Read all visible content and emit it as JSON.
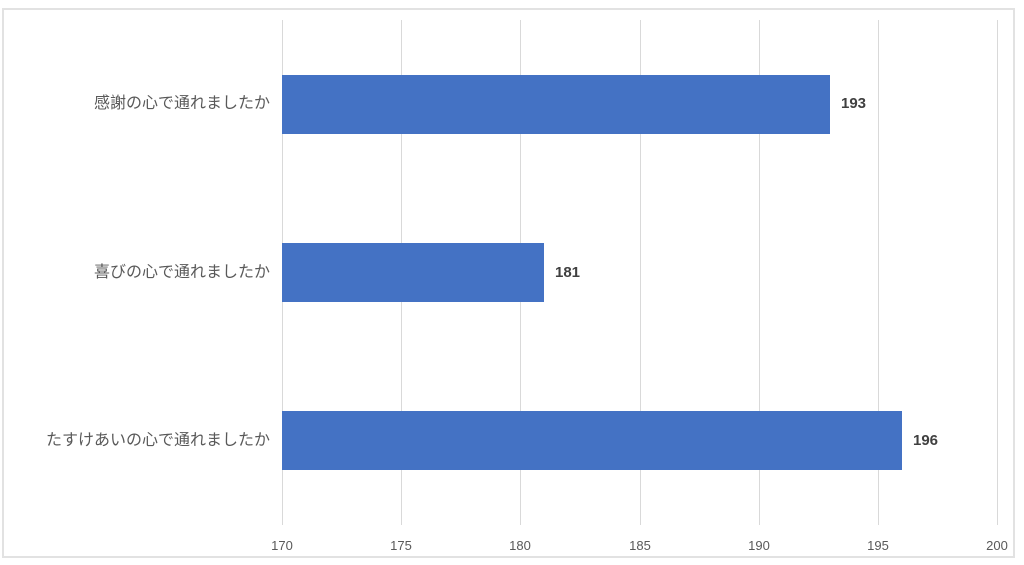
{
  "chart_data": {
    "type": "bar",
    "orientation": "horizontal",
    "title": "",
    "xlabel": "",
    "ylabel": "",
    "categories": [
      "感謝の心で通れましたか",
      "喜びの心で通れましたか",
      "たすけあいの心で通れましたか"
    ],
    "values": [
      193,
      181,
      196
    ],
    "data_labels": [
      "193",
      "181",
      "196"
    ],
    "xlim": [
      170,
      200
    ],
    "xticks": [
      170,
      175,
      180,
      185,
      190,
      195,
      200
    ],
    "grid": "vertical-only",
    "legend": "none",
    "colors": {
      "bar": "#4472C4",
      "gridline": "#d9d9d9",
      "chart_border": "#e2e2e2",
      "tick_label": "#595959",
      "category_label": "#595959",
      "data_label": "#404040",
      "background": "#ffffff"
    }
  }
}
